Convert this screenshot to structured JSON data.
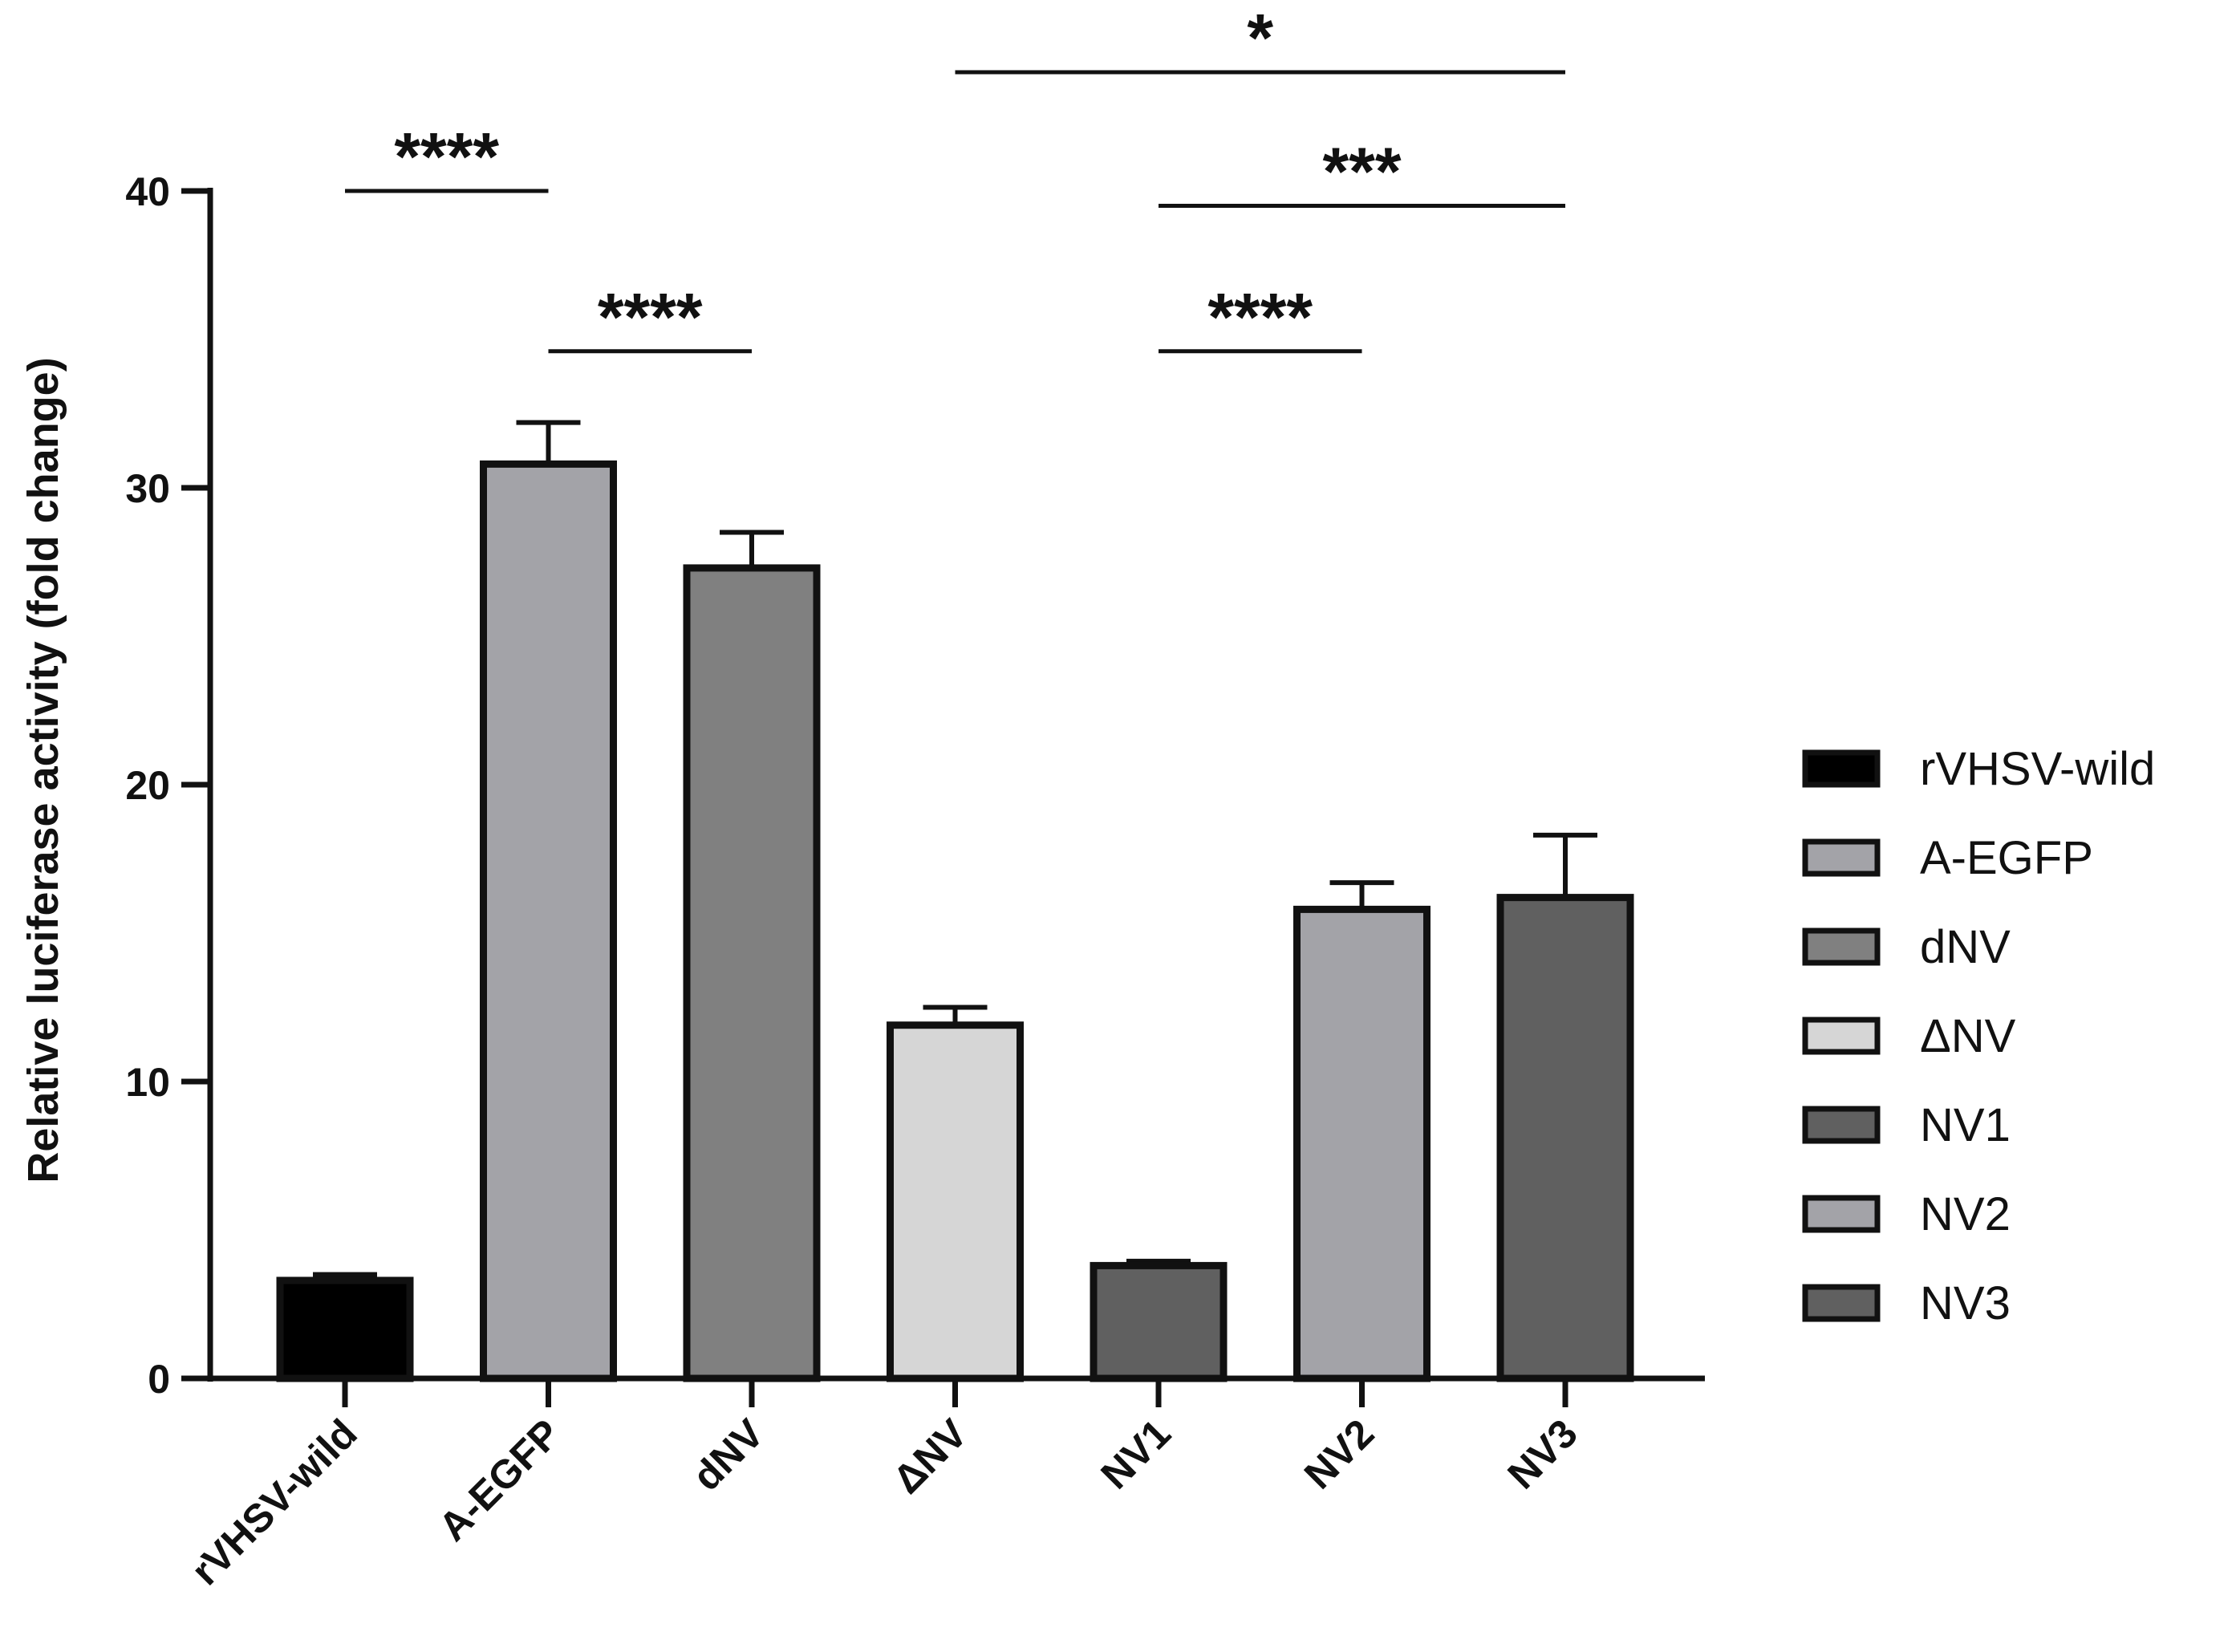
{
  "chart_data": {
    "type": "bar",
    "title": "",
    "xlabel": "",
    "ylabel": "Relative luciferase activity (fold change)",
    "ylim": [
      0,
      40
    ],
    "yticks": [
      "0",
      "10",
      "20",
      "30",
      "40"
    ],
    "categories": [
      "rVHSV-wild",
      "A-EGFP",
      "dNV",
      "ΔNV",
      "NV1",
      "NV2",
      "NV3"
    ],
    "values": [
      3.3,
      30.8,
      27.3,
      11.9,
      3.8,
      15.8,
      16.2
    ],
    "errors": [
      0.2,
      1.4,
      1.2,
      0.6,
      0.15,
      0.9,
      2.1
    ],
    "colors": [
      "#000000",
      "#a3a3a8",
      "#808080",
      "#d6d6d6",
      "#606060",
      "#a3a3a8",
      "#606060"
    ],
    "legend": {
      "position": "right",
      "items": [
        "rVHSV-wild",
        "A-EGFP",
        "dNV",
        "ΔNV",
        "NV1",
        "NV2",
        "NV3"
      ]
    },
    "significance": [
      {
        "from": "rVHSV-wild",
        "to": "A-EGFP",
        "label": "****",
        "level": 40
      },
      {
        "from": "A-EGFP",
        "to": "dNV",
        "label": "****",
        "level": 34.6
      },
      {
        "from": "ΔNV",
        "to": "NV3",
        "label": "*",
        "level": 44
      },
      {
        "from": "NV1",
        "to": "NV3",
        "label": "***",
        "level": 39.5
      },
      {
        "from": "NV1",
        "to": "NV2",
        "label": "****",
        "level": 34.6
      }
    ],
    "grid": false
  }
}
